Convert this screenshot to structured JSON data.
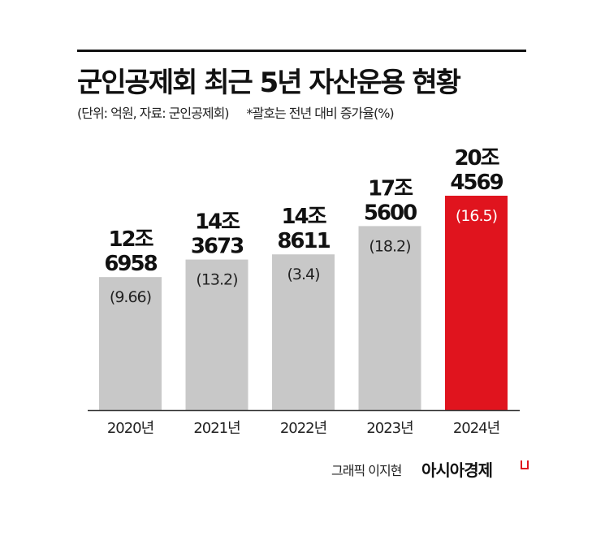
{
  "title": "군인공제회 최근 5년 자산운용 현황",
  "subtitle": "(단위: 억원, 자료: 군인공제회)",
  "note": "*괄호는 전년 대비 증가율(%)",
  "credit": "그래픽 이지현",
  "brand": "아시아경제",
  "colors": {
    "bar": "#c8c8c8",
    "highlight": "#e0141e",
    "axis": "#333333"
  },
  "chart_data": {
    "type": "bar",
    "categories": [
      "2020년",
      "2021년",
      "2022년",
      "2023년",
      "2024년"
    ],
    "values": [
      126958,
      143673,
      148611,
      175600,
      204569
    ],
    "value_labels": [
      [
        "12조",
        "6958"
      ],
      [
        "14조",
        "3673"
      ],
      [
        "14조",
        "8611"
      ],
      [
        "17조",
        "5600"
      ],
      [
        "20조",
        "4569"
      ]
    ],
    "growth_labels": [
      "(9.66)",
      "(13.2)",
      "(3.4)",
      "(18.2)",
      "(16.5)"
    ],
    "highlight_index": 4,
    "ylim": [
      0,
      204569
    ],
    "grid": false,
    "xlabel": "",
    "ylabel": ""
  }
}
